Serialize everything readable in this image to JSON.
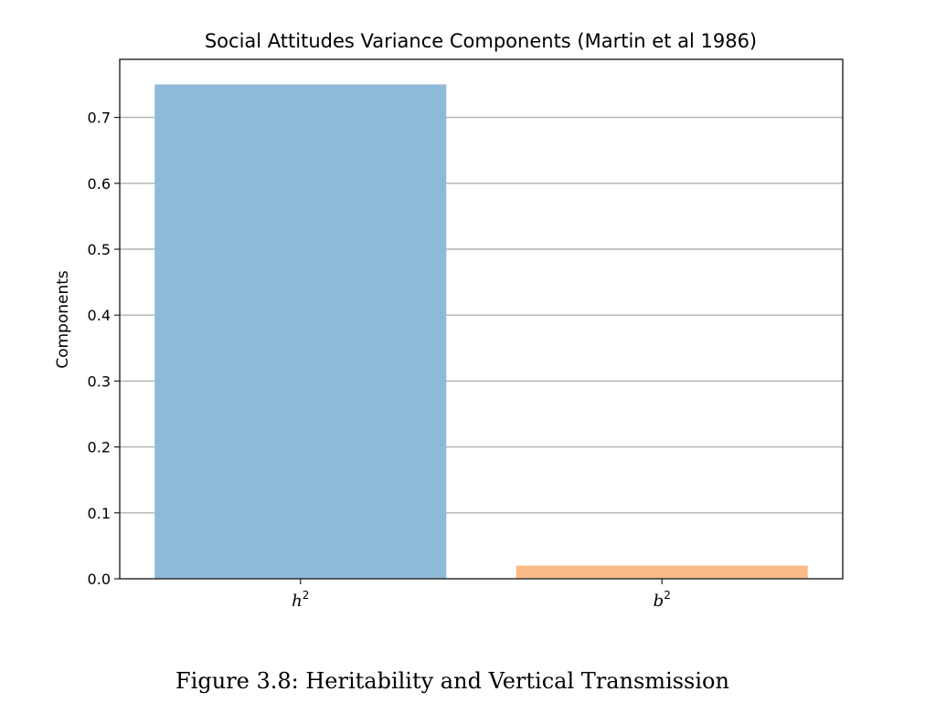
{
  "chart_data": {
    "type": "bar",
    "title": "Social Attitudes Variance Components (Martin et al 1986)",
    "xlabel": "",
    "ylabel": "Components",
    "categories": [
      {
        "base": "h",
        "sup": "2"
      },
      {
        "base": "b",
        "sup": "2"
      }
    ],
    "values": [
      0.75,
      0.02
    ],
    "colors": [
      "#8fb9d9",
      "#fbbb87"
    ],
    "ylim": [
      0,
      0.75
    ],
    "yticks": [
      "0.0",
      "0.1",
      "0.2",
      "0.3",
      "0.4",
      "0.5",
      "0.6",
      "0.7"
    ],
    "grid": "horizontal",
    "legend": "none"
  },
  "caption": "Figure 3.8: Heritability and Vertical Transmission"
}
